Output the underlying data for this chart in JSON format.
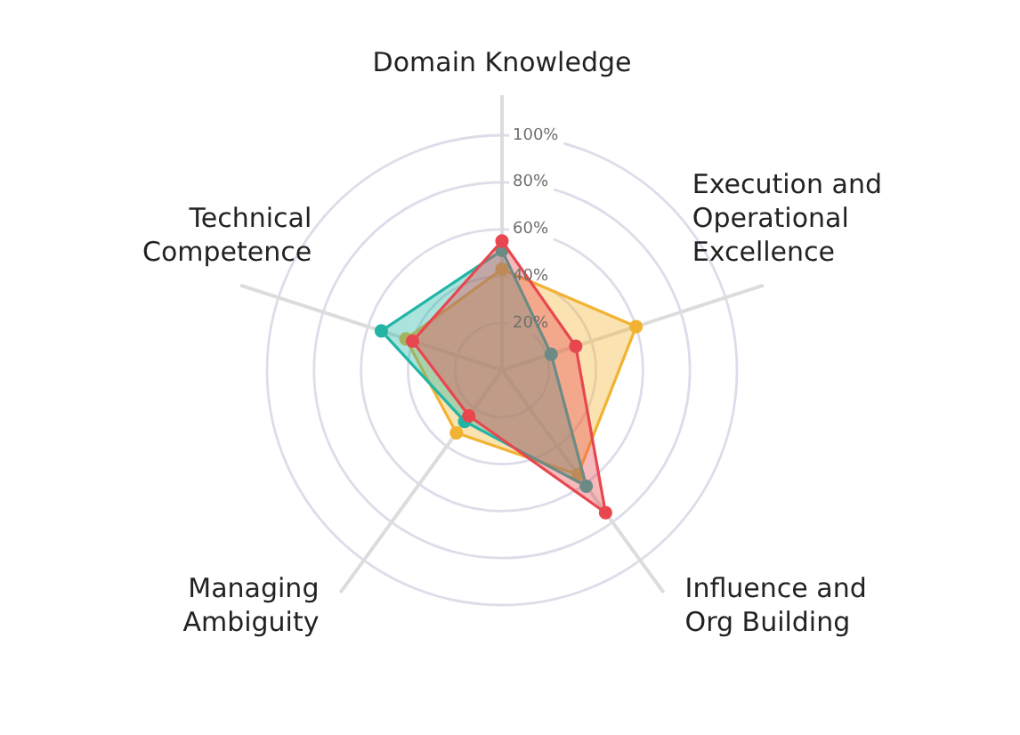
{
  "chart_data": {
    "type": "radar",
    "categories": [
      "Domain Knowledge",
      "Execution and Operational Excellence",
      "Influence and Org Building",
      "Managing Ambiguity",
      "Technical Competence"
    ],
    "series": [
      {
        "color": "#e8474f",
        "values": [
          55,
          33,
          75,
          24,
          40
        ]
      },
      {
        "color": "#22b5a6",
        "values": [
          51,
          22,
          61,
          27,
          54
        ]
      },
      {
        "color": "#f2b233",
        "values": [
          43,
          60,
          55,
          33,
          43
        ]
      }
    ],
    "ylim": [
      0,
      100
    ],
    "yticks": [
      {
        "value": 20,
        "label": "20%"
      },
      {
        "value": 40,
        "label": "40%"
      },
      {
        "value": 60,
        "label": "60%"
      },
      {
        "value": 80,
        "label": "80%"
      },
      {
        "value": 100,
        "label": "100%"
      }
    ],
    "grid": true,
    "marker": "circle"
  }
}
